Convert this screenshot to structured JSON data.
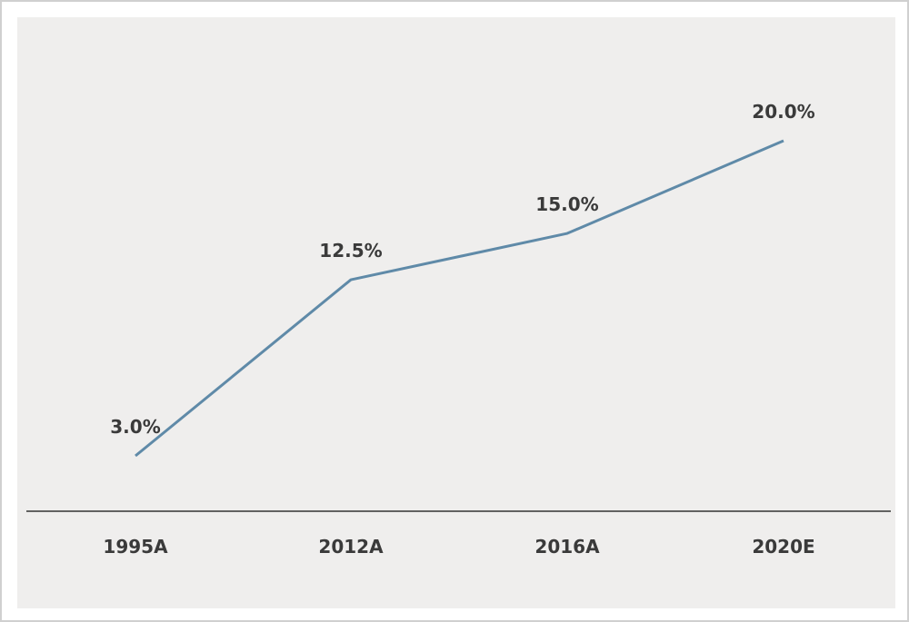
{
  "chart_data": {
    "type": "line",
    "categories": [
      "1995A",
      "2012A",
      "2016A",
      "2020E"
    ],
    "series": [
      {
        "values": [
          3.0,
          12.5,
          15.0,
          20.0
        ],
        "labels": [
          "3.0%",
          "12.5%",
          "15.0%",
          "20.0%"
        ],
        "color": "#5f8aa8"
      }
    ],
    "ylim": [
      0,
      25
    ],
    "grid": false,
    "legend": "none",
    "axis_color": "#333333",
    "background": "#efeeed"
  }
}
